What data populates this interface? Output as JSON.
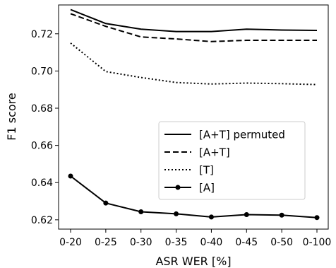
{
  "chart_data": {
    "type": "line",
    "title": "",
    "xlabel": "ASR WER [%]",
    "ylabel": "F1 score",
    "categories": [
      "0-20",
      "0-25",
      "0-30",
      "0-35",
      "0-40",
      "0-45",
      "0-50",
      "0-100"
    ],
    "ylim": [
      0.615,
      0.7355
    ],
    "yticks": [
      "0.62",
      "0.64",
      "0.66",
      "0.68",
      "0.70",
      "0.72"
    ],
    "grid": false,
    "legend_position": "center-right",
    "series": [
      {
        "name": "[A+T] permuted",
        "style": "solid",
        "marker": "none",
        "color": "#000000",
        "values": [
          0.733,
          0.7255,
          0.7225,
          0.7212,
          0.7212,
          0.7225,
          0.722,
          0.7218
        ]
      },
      {
        "name": "[A+T]",
        "style": "dashed",
        "marker": "none",
        "color": "#000000",
        "values": [
          0.7308,
          0.724,
          0.7183,
          0.7172,
          0.7158,
          0.7165,
          0.7165,
          0.7165
        ]
      },
      {
        "name": "[T]",
        "style": "dotted",
        "marker": "none",
        "color": "#000000",
        "values": [
          0.715,
          0.6997,
          0.6965,
          0.6938,
          0.693,
          0.6935,
          0.6932,
          0.6927
        ]
      },
      {
        "name": "[A]",
        "style": "solid",
        "marker": "circle",
        "color": "#000000",
        "values": [
          0.6435,
          0.629,
          0.6243,
          0.6232,
          0.6215,
          0.6228,
          0.6225,
          0.6212
        ]
      }
    ]
  }
}
